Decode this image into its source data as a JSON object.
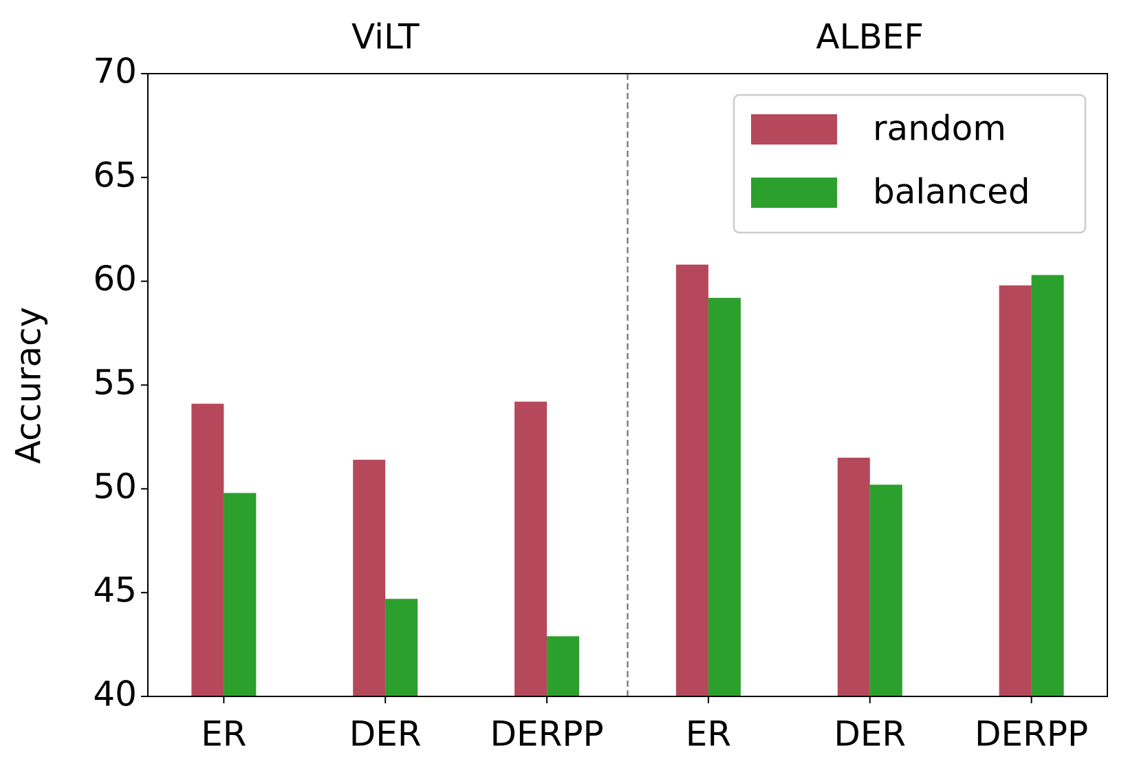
{
  "chart_data": {
    "type": "bar",
    "ylabel": "Accuracy",
    "group_labels": [
      "ViLT",
      "ALBEF"
    ],
    "categories": [
      "ER",
      "DER",
      "DERPP",
      "ER",
      "DER",
      "DERPP"
    ],
    "series": [
      {
        "name": "random",
        "color": "#b5485b",
        "values": [
          54.1,
          51.4,
          54.2,
          60.8,
          51.5,
          59.8
        ]
      },
      {
        "name": "balanced",
        "color": "#2ca02c",
        "values": [
          49.8,
          44.7,
          42.9,
          59.2,
          50.2,
          60.3
        ]
      }
    ],
    "ylim": [
      40,
      70
    ],
    "yticks": [
      40,
      45,
      50,
      55,
      60,
      65,
      70
    ],
    "legend": "upper right"
  }
}
